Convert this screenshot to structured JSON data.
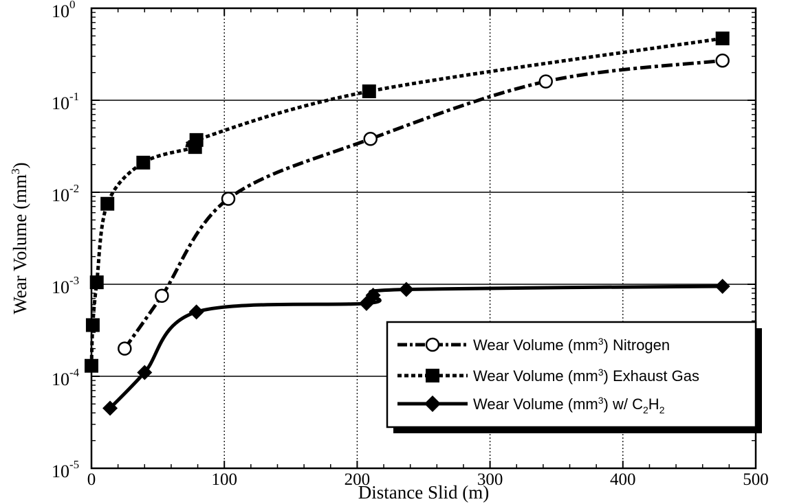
{
  "chart_data": {
    "type": "line",
    "xlabel": "Distance Slid (m)",
    "ylabel": "Wear Volume (mm",
    "ylabel_sup": "3",
    "ylabel_close": ")",
    "xlim": [
      0,
      500
    ],
    "ylim": [
      1e-05,
      1
    ],
    "y_scale": "log",
    "x_ticks": [
      0,
      100,
      200,
      300,
      400,
      500
    ],
    "x_tick_labels": [
      "0",
      "100",
      "200",
      "300",
      "400",
      "500"
    ],
    "y_ticks": [
      1e-05,
      0.0001,
      0.001,
      0.01,
      0.1,
      1
    ],
    "y_tick_base": "10",
    "y_tick_exponents": [
      "-5",
      "-4",
      "-3",
      "-2",
      "-1",
      "0"
    ],
    "grid": {
      "vertical": "dotted",
      "horizontal": "solid"
    },
    "legend_position": "bottom-right",
    "series": [
      {
        "name": "Wear Volume (mm³) Nitrogen",
        "legend_prefix": "Wear Volume (mm",
        "legend_sup": "3",
        "legend_suffix": ") Nitrogen",
        "marker": "circle-open",
        "line_style": "dash-dot",
        "color": "#000000",
        "x": [
          25,
          53,
          103,
          210,
          342,
          475
        ],
        "y": [
          0.0002,
          0.00075,
          0.0085,
          0.038,
          0.16,
          0.27
        ]
      },
      {
        "name": "Wear Volume (mm³) Exhaust Gas",
        "legend_prefix": "Wear Volume (mm",
        "legend_sup": "3",
        "legend_suffix": ") Exhaust Gas",
        "marker": "square-filled",
        "line_style": "dashed",
        "color": "#000000",
        "x": [
          0,
          1,
          4,
          12,
          39,
          78,
          79,
          209,
          475
        ],
        "y": [
          0.00013,
          0.00036,
          0.00105,
          0.0075,
          0.021,
          0.031,
          0.037,
          0.125,
          0.47
        ]
      },
      {
        "name": "Wear Volume (mm³) w/ C2H2",
        "legend_prefix": "Wear Volume (mm",
        "legend_sup": "3",
        "legend_mid": ") w/ C",
        "legend_sub1": "2",
        "legend_mid2": "H",
        "legend_sub2": "2",
        "marker": "diamond-filled",
        "line_style": "solid",
        "color": "#000000",
        "x": [
          14,
          40,
          79,
          207,
          212,
          237,
          475
        ],
        "y": [
          4.5e-05,
          0.00011,
          0.0005,
          0.00062,
          0.00076,
          0.00088,
          0.00095
        ]
      }
    ]
  }
}
